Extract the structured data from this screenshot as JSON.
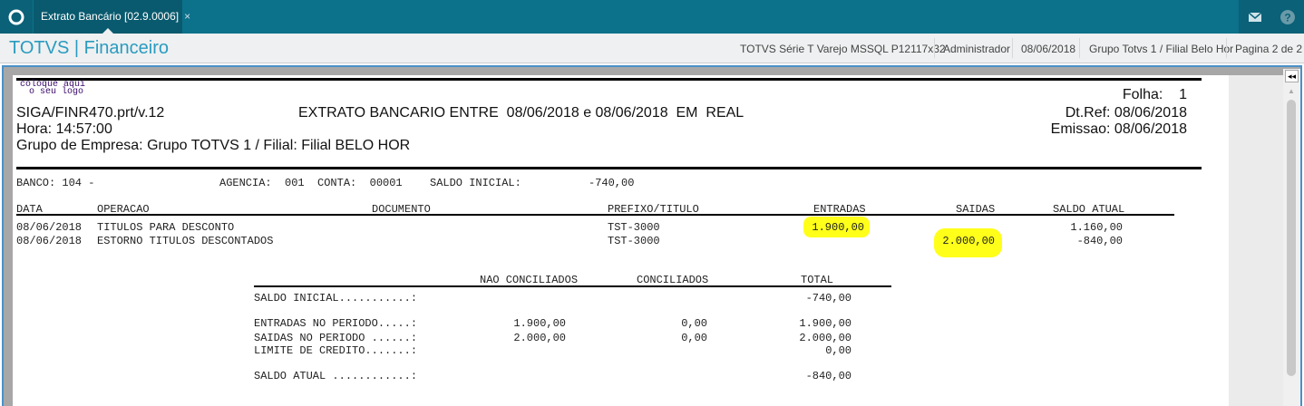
{
  "topbar": {
    "tab_label": "Extrato Bancário [02.9.0006]",
    "close": "×",
    "icons": [
      "totvs-logo-icon",
      "mail-icon",
      "help-icon"
    ]
  },
  "subheader": {
    "title": "TOTVS | Financeiro",
    "info": [
      "TOTVS Série T Varejo MSSQL P12117x32",
      "Administrador",
      "08/06/2018",
      "Grupo Totvs 1 / Filial Belo Hor",
      "Pagina 2 de 2"
    ]
  },
  "report": {
    "logo_text": [
      "coloque aqui",
      "o seu logo"
    ],
    "folha": "Folha:    1",
    "program": "SIGA/FINR470.prt/v.12",
    "title": "EXTRATO BANCARIO ENTRE  08/06/2018 e 08/06/2018  EM  REAL",
    "dtref": "Dt.Ref: 08/06/2018",
    "hora": "Hora: 14:57:00",
    "emissao": "Emissao: 08/06/2018",
    "grupo": "Grupo de Empresa: Grupo TOTVS 1 / Filial: Filial BELO HOR",
    "banco": "BANCO: 104 -",
    "agencia": "AGENCIA:  001  CONTA:  00001",
    "saldo_inicial_label": "SALDO INICIAL:",
    "saldo_inicial": "-740,00",
    "columns": [
      "DATA",
      "OPERACAO",
      "DOCUMENTO",
      "PREFIXO/TITULO",
      "ENTRADAS",
      "SAIDAS",
      "SALDO ATUAL"
    ],
    "rows": [
      {
        "data": "08/06/2018",
        "operacao": "TITULOS PARA DESCONTO",
        "prefixo": "TST-3000",
        "entradas": "1.900,00",
        "saidas": "",
        "saldo": "1.160,00"
      },
      {
        "data": "08/06/2018",
        "operacao": "ESTORNO TITULOS DESCONTADOS",
        "prefixo": "TST-3000",
        "entradas": "",
        "saidas": "2.000,00",
        "saldo": "-840,00"
      }
    ],
    "highlight_color": "#ffff1a",
    "summary": {
      "columns": [
        "NAO CONCILIADOS",
        "CONCILIADOS",
        "TOTAL"
      ],
      "rows": [
        {
          "label": "SALDO INICIAL...........:",
          "nao": "",
          "conc": "",
          "total": "-740,00"
        },
        {
          "label": "ENTRADAS NO PERIODO.....:",
          "nao": "1.900,00",
          "conc": "0,00",
          "total": "1.900,00"
        },
        {
          "label": "SAIDAS NO PERIODO ......:",
          "nao": "2.000,00",
          "conc": "0,00",
          "total": "2.000,00"
        },
        {
          "label": "LIMITE DE CREDITO.......:",
          "nao": "",
          "conc": "",
          "total": "0,00"
        },
        {
          "label": "SALDO ATUAL ............:",
          "nao": "",
          "conc": "",
          "total": "-840,00"
        }
      ]
    }
  }
}
